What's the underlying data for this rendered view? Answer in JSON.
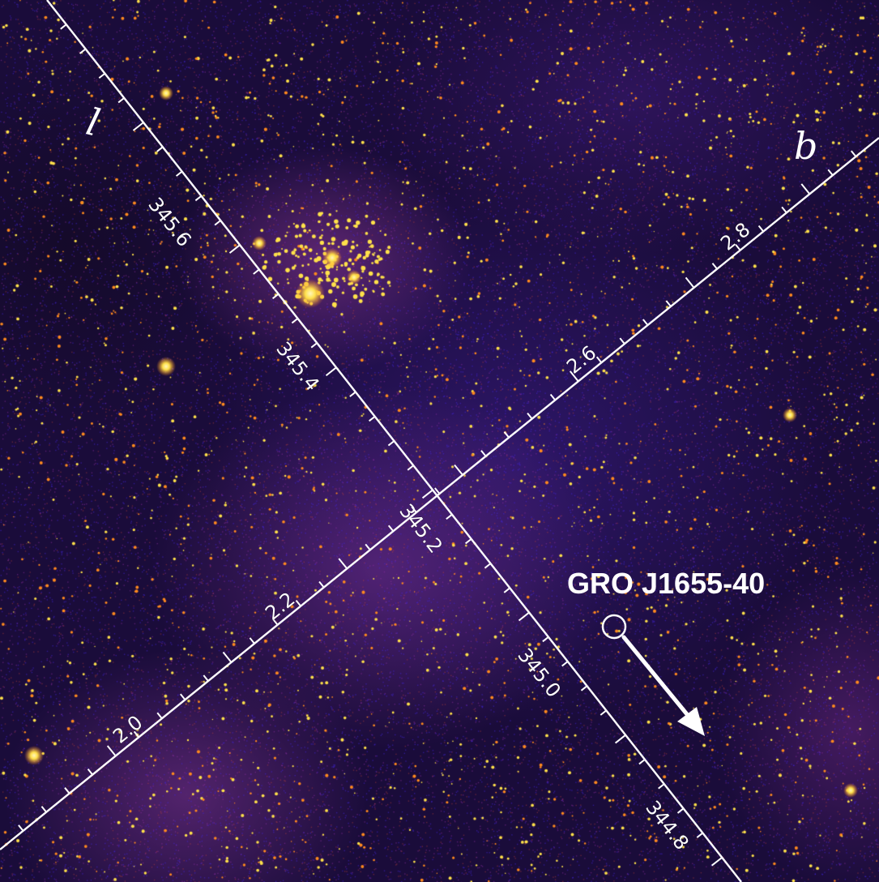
{
  "image": {
    "target_name": "GRO J1655-40",
    "axis_l": {
      "letter": "l",
      "ticks": [
        "345.6",
        "345.4",
        "345.2",
        "345.0",
        "344.8"
      ]
    },
    "axis_b": {
      "letter": "b",
      "ticks": [
        "2.0",
        "2.2",
        "2.6",
        "2.8"
      ]
    },
    "colors": {
      "overlay": "#ffffff",
      "star_core": "#ffe14a",
      "star_halo": "#ff8a1e",
      "nebula": "#6a2fd0"
    }
  }
}
